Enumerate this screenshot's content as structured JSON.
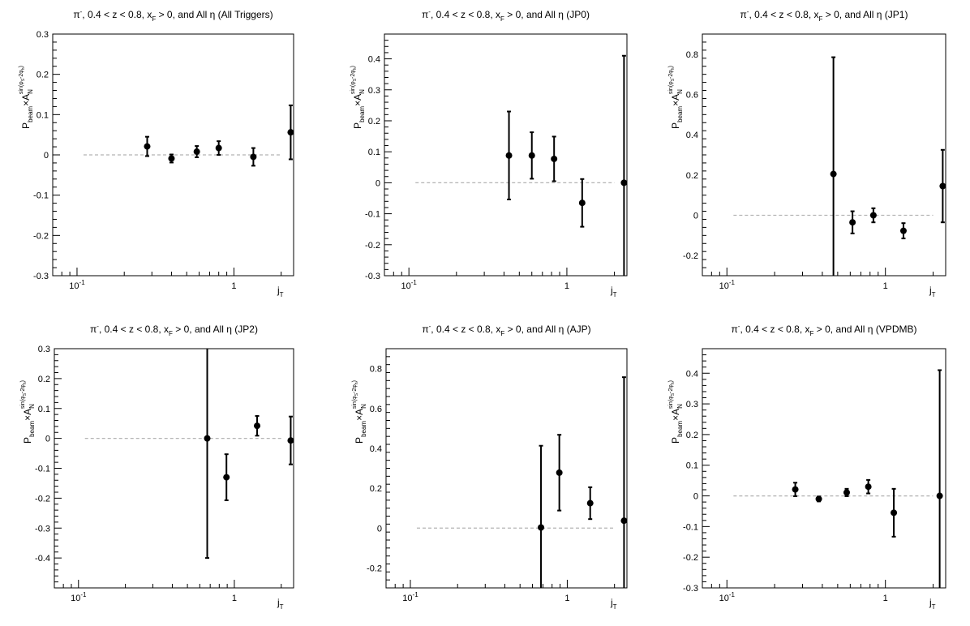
{
  "chart_data": [
    {
      "type": "scatter",
      "title": "π⁻, 0.4 < z < 0.8, x_F > 0, and All η (All Triggers)",
      "title_parts": {
        "particle": "π",
        "sup": "-",
        "pre": ", 0.4 < z < 0.8, x",
        "sub": "F",
        "post": " > 0, and All η (All Triggers)"
      },
      "xlabel": "j_T",
      "ylabel": "P_beam × A_N^{sin(φ_S-2φ_h)}",
      "xscale": "log",
      "xlim": [
        0.07,
        2.4
      ],
      "ylim": [
        -0.3,
        0.3
      ],
      "xticks": [
        {
          "v": 0.1,
          "label": "10-1"
        },
        {
          "v": 1,
          "label": "1"
        }
      ],
      "yticks": [
        -0.3,
        -0.2,
        -0.1,
        0,
        0.1,
        0.2,
        0.3
      ],
      "ytick_labels": [
        "-0.3",
        "-0.2",
        "-0.1",
        "0",
        "0.1",
        "0.2",
        "0.3"
      ],
      "reference_line": {
        "y": 0,
        "x_from": 0.11,
        "x_to": 2.0,
        "style": "dashed"
      },
      "points": [
        {
          "x": 0.28,
          "y": 0.021,
          "err": 0.024
        },
        {
          "x": 0.4,
          "y": -0.009,
          "err": 0.01
        },
        {
          "x": 0.58,
          "y": 0.008,
          "err": 0.014
        },
        {
          "x": 0.8,
          "y": 0.017,
          "err": 0.017
        },
        {
          "x": 1.33,
          "y": -0.005,
          "err": 0.022
        },
        {
          "x": 2.3,
          "y": 0.056,
          "err": 0.067
        }
      ]
    },
    {
      "type": "scatter",
      "title": "π⁻, 0.4 < z < 0.8, x_F > 0, and All η (JP0)",
      "title_parts": {
        "particle": "π",
        "sup": "-",
        "pre": ", 0.4 < z < 0.8, x",
        "sub": "F",
        "post": " > 0, and All η (JP0)"
      },
      "xlabel": "j_T",
      "ylabel": "P_beam × A_N^{sin(φ_S-2φ_h)}",
      "xscale": "log",
      "xlim": [
        0.07,
        2.4
      ],
      "ylim": [
        -0.3,
        0.48
      ],
      "xticks": [
        {
          "v": 0.1,
          "label": "10-1"
        },
        {
          "v": 1,
          "label": "1"
        }
      ],
      "yticks": [
        -0.3,
        -0.2,
        -0.1,
        0,
        0.1,
        0.2,
        0.3,
        0.4
      ],
      "ytick_labels": [
        "-0.3",
        "-0.2",
        "-0.1",
        "0",
        "0.1",
        "0.2",
        "0.3",
        "0.4"
      ],
      "reference_line": {
        "y": 0,
        "x_from": 0.11,
        "x_to": 2.0,
        "style": "dashed"
      },
      "points": [
        {
          "x": 0.43,
          "y": 0.088,
          "err": 0.142
        },
        {
          "x": 0.6,
          "y": 0.088,
          "err": 0.075
        },
        {
          "x": 0.83,
          "y": 0.077,
          "err": 0.072
        },
        {
          "x": 1.25,
          "y": -0.065,
          "err": 0.077
        },
        {
          "x": 2.3,
          "y": 0.0,
          "err": 0.41
        }
      ]
    },
    {
      "type": "scatter",
      "title": "π⁻, 0.4 < z < 0.8, x_F > 0, and All η (JP1)",
      "title_parts": {
        "particle": "π",
        "sup": "-",
        "pre": ", 0.4 < z < 0.8, x",
        "sub": "F",
        "post": " > 0, and All η (JP1)"
      },
      "xlabel": "j_T",
      "ylabel": "P_beam × A_N^{sin(φ_S-2φ_h)}",
      "xscale": "log",
      "xlim": [
        0.07,
        2.4
      ],
      "ylim": [
        -0.3,
        0.9
      ],
      "xticks": [
        {
          "v": 0.1,
          "label": "10-1"
        },
        {
          "v": 1,
          "label": "1"
        }
      ],
      "yticks": [
        -0.2,
        0,
        0.2,
        0.4,
        0.6,
        0.8
      ],
      "ytick_labels": [
        "-0.2",
        "0",
        "0.2",
        "0.4",
        "0.6",
        "0.8"
      ],
      "reference_line": {
        "y": 0,
        "x_from": 0.11,
        "x_to": 2.0,
        "style": "dashed"
      },
      "points": [
        {
          "x": 0.47,
          "y": 0.205,
          "err": 0.58
        },
        {
          "x": 0.62,
          "y": -0.035,
          "err": 0.055
        },
        {
          "x": 0.84,
          "y": 0.0,
          "err": 0.035
        },
        {
          "x": 1.3,
          "y": -0.077,
          "err": 0.038
        },
        {
          "x": 2.3,
          "y": 0.145,
          "err": 0.18
        }
      ]
    },
    {
      "type": "scatter",
      "title": "π⁻, 0.4 < z < 0.8, x_F > 0, and All η (JP2)",
      "title_parts": {
        "particle": "π",
        "sup": "-",
        "pre": ", 0.4 < z < 0.8, x",
        "sub": "F",
        "post": " > 0, and All η (JP2)"
      },
      "xlabel": "j_T",
      "ylabel": "P_beam × A_N^{sin(φ_S-2φ_h)}",
      "xscale": "log",
      "xlim": [
        0.07,
        2.4
      ],
      "ylim": [
        -0.5,
        0.3
      ],
      "xticks": [
        {
          "v": 0.1,
          "label": "10-1"
        },
        {
          "v": 1,
          "label": "1"
        }
      ],
      "yticks": [
        -0.4,
        -0.3,
        -0.2,
        -0.1,
        0,
        0.1,
        0.2,
        0.3
      ],
      "ytick_labels": [
        "-0.4",
        "-0.3",
        "-0.2",
        "-0.1",
        "0",
        "0.1",
        "0.2",
        "0.3"
      ],
      "reference_line": {
        "y": 0,
        "x_from": 0.11,
        "x_to": 2.0,
        "style": "dashed"
      },
      "points": [
        {
          "x": 0.67,
          "y": 0.0,
          "err": 0.4
        },
        {
          "x": 0.89,
          "y": -0.13,
          "err": 0.077
        },
        {
          "x": 1.4,
          "y": 0.042,
          "err": 0.033
        },
        {
          "x": 2.3,
          "y": -0.007,
          "err": 0.08
        }
      ]
    },
    {
      "type": "scatter",
      "title": "π⁻, 0.4 < z < 0.8, x_F > 0, and All η (AJP)",
      "title_parts": {
        "particle": "π",
        "sup": "-",
        "pre": ", 0.4 < z < 0.8, x",
        "sub": "F",
        "post": " > 0, and All η (AJP)"
      },
      "xlabel": "j_T",
      "ylabel": "P_beam × A_N^{sin(φ_S-2φ_h)}",
      "xscale": "log",
      "xlim": [
        0.07,
        2.4
      ],
      "ylim": [
        -0.3,
        0.9
      ],
      "xticks": [
        {
          "v": 0.1,
          "label": "10-1"
        },
        {
          "v": 1,
          "label": "1"
        }
      ],
      "yticks": [
        -0.2,
        0,
        0.2,
        0.4,
        0.6,
        0.8
      ],
      "ytick_labels": [
        "-0.2",
        "0",
        "0.2",
        "0.4",
        "0.6",
        "0.8"
      ],
      "reference_line": {
        "y": 0,
        "x_from": 0.11,
        "x_to": 2.0,
        "style": "dashed"
      },
      "points": [
        {
          "x": 0.68,
          "y": 0.003,
          "err": 0.41
        },
        {
          "x": 0.89,
          "y": 0.278,
          "err": 0.19
        },
        {
          "x": 1.4,
          "y": 0.125,
          "err": 0.08
        },
        {
          "x": 2.3,
          "y": 0.037,
          "err": 0.72
        }
      ]
    },
    {
      "type": "scatter",
      "title": "π⁻, 0.4 < z < 0.8, x_F > 0, and All η (VPDMB)",
      "title_parts": {
        "particle": "π",
        "sup": "-",
        "pre": ", 0.4 < z < 0.8, x",
        "sub": "F",
        "post": " > 0, and All η (VPDMB)"
      },
      "xlabel": "j_T",
      "ylabel": "P_beam × A_N^{sin(φ_S-2φ_h)}",
      "xscale": "log",
      "xlim": [
        0.07,
        2.4
      ],
      "ylim": [
        -0.3,
        0.48
      ],
      "xticks": [
        {
          "v": 0.1,
          "label": "10-1"
        },
        {
          "v": 1,
          "label": "1"
        }
      ],
      "yticks": [
        -0.3,
        -0.2,
        -0.1,
        0,
        0.1,
        0.2,
        0.3,
        0.4
      ],
      "ytick_labels": [
        "-0.3",
        "-0.2",
        "-0.1",
        "0",
        "0.1",
        "0.2",
        "0.3",
        "0.4"
      ],
      "reference_line": {
        "y": 0,
        "x_from": 0.11,
        "x_to": 2.0,
        "style": "dashed"
      },
      "points": [
        {
          "x": 0.27,
          "y": 0.021,
          "err": 0.022
        },
        {
          "x": 0.38,
          "y": -0.01,
          "err": 0.008
        },
        {
          "x": 0.57,
          "y": 0.011,
          "err": 0.012
        },
        {
          "x": 0.78,
          "y": 0.03,
          "err": 0.022
        },
        {
          "x": 1.13,
          "y": -0.055,
          "err": 0.078
        },
        {
          "x": 2.2,
          "y": 0.0,
          "err": 0.41
        }
      ]
    }
  ],
  "style": {
    "marker_color": "#000000",
    "axis_color": "#000000",
    "reference_line_color": "#b4b4b4",
    "background": "#ffffff"
  }
}
